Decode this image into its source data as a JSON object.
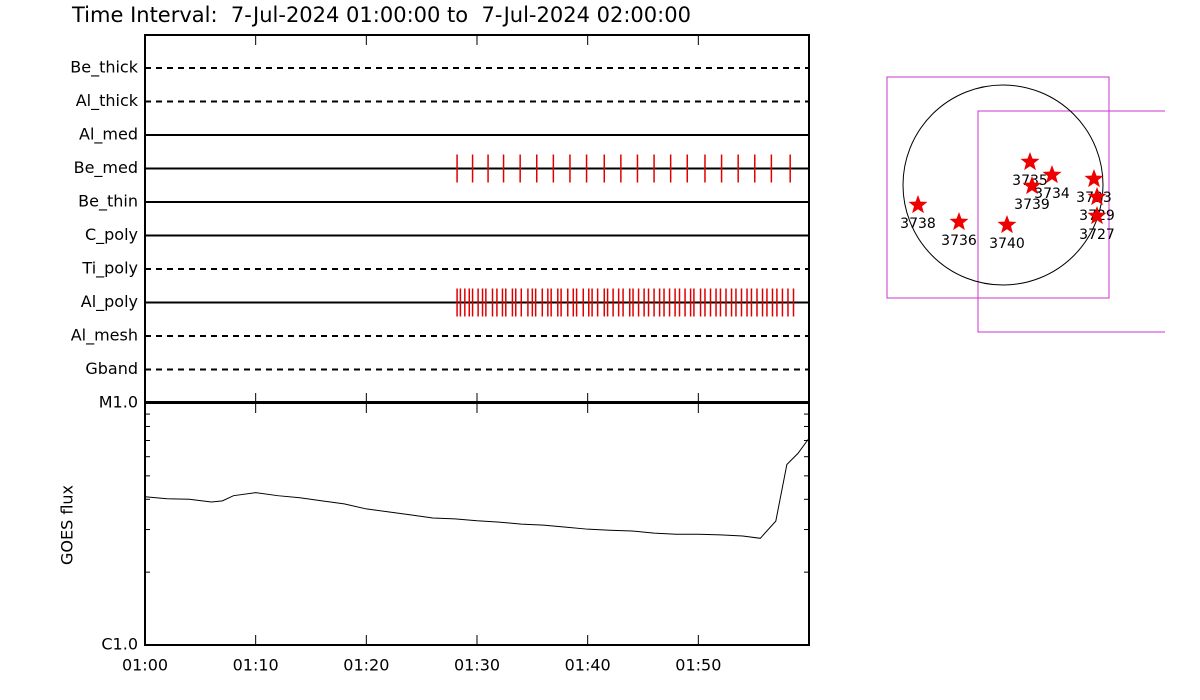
{
  "chart_data": [
    {
      "type": "timeline",
      "title": "Time Interval:  7-Jul-2024 01:00:00 to  7-Jul-2024 02:00:00",
      "color": "#e00000",
      "rows": [
        {
          "name": "Be_thick",
          "line": "dashed",
          "events": []
        },
        {
          "name": "Al_thick",
          "line": "dashed",
          "events": []
        },
        {
          "name": "Al_med",
          "line": "solid",
          "events": []
        },
        {
          "name": "Be_med",
          "line": "solid",
          "events": [
            28.2,
            29.6,
            31.0,
            32.4,
            33.9,
            35.4,
            36.9,
            38.4,
            39.9,
            41.5,
            43.0,
            44.5,
            46.0,
            47.5,
            49.0,
            50.6,
            52.1,
            53.6,
            55.1,
            56.6,
            58.3
          ]
        },
        {
          "name": "Be_thin",
          "line": "solid",
          "events": []
        },
        {
          "name": "C_poly",
          "line": "solid",
          "events": []
        },
        {
          "name": "Ti_poly",
          "line": "dashed",
          "events": []
        },
        {
          "name": "Al_poly",
          "line": "solid",
          "events": [
            28.2,
            28.5,
            28.9,
            29.3,
            29.6,
            30.1,
            30.5,
            30.8,
            31.4,
            31.8,
            32.3,
            32.6,
            33.2,
            33.5,
            34.0,
            34.6,
            35.0,
            35.3,
            35.9,
            36.4,
            36.7,
            37.3,
            37.6,
            38.2,
            38.7,
            39.0,
            39.6,
            40.1,
            40.4,
            40.9,
            41.5,
            41.8,
            42.3,
            42.8,
            43.2,
            43.8,
            44.1,
            44.6,
            45.1,
            45.5,
            46.0,
            46.5,
            46.9,
            47.4,
            47.9,
            48.3,
            48.8,
            49.3,
            49.6,
            50.2,
            50.6,
            51.1,
            51.6,
            52.0,
            52.5,
            53.0,
            53.4,
            53.9,
            54.4,
            54.8,
            55.3,
            55.8,
            56.2,
            56.7,
            57.1,
            57.6,
            58.1,
            58.6
          ]
        },
        {
          "name": "Al_mesh",
          "line": "dashed",
          "events": []
        },
        {
          "name": "Gband",
          "line": "dashed",
          "events": []
        }
      ]
    },
    {
      "type": "line",
      "y_label": "GOES flux",
      "log_y": true,
      "color": "#000000",
      "x": [
        0,
        2,
        4,
        6,
        7,
        8,
        10,
        12,
        14,
        16,
        18,
        20,
        22,
        24,
        26,
        28,
        30,
        32,
        34,
        36,
        38,
        40,
        42,
        44,
        46,
        48,
        50,
        52,
        54,
        55.6,
        57,
        58,
        59,
        60
      ],
      "values": [
        4.1e-06,
        4.02e-06,
        4e-06,
        3.9e-06,
        3.94e-06,
        4.14e-06,
        4.26e-06,
        4.14e-06,
        4.06e-06,
        3.94e-06,
        3.83e-06,
        3.65e-06,
        3.55e-06,
        3.45e-06,
        3.35e-06,
        3.32e-06,
        3.26e-06,
        3.22e-06,
        3.16e-06,
        3.13e-06,
        3.07e-06,
        3.01e-06,
        2.98e-06,
        2.96e-06,
        2.9e-06,
        2.87e-06,
        2.87e-06,
        2.85e-06,
        2.82e-06,
        2.76e-06,
        3.25e-06,
        5.57e-06,
        6.19e-06,
        7.15e-06
      ],
      "xlim": [
        0,
        60
      ],
      "xticks": [
        {
          "value": 0,
          "label": "01:00"
        },
        {
          "value": 10,
          "label": "01:10"
        },
        {
          "value": 20,
          "label": "01:20"
        },
        {
          "value": 30,
          "label": "01:30"
        },
        {
          "value": 40,
          "label": "01:40"
        },
        {
          "value": 50,
          "label": "01:50"
        }
      ],
      "ylim": [
        1e-06,
        1e-05
      ],
      "yticks": [
        {
          "value": 1e-06,
          "label": "C1.0"
        },
        {
          "value": 1e-05,
          "label": "M1.0"
        }
      ],
      "yminor_ticks": [
        2e-06,
        3e-06,
        4e-06,
        5e-06,
        6e-06,
        7e-06,
        8e-06,
        9e-06
      ]
    }
  ],
  "map": {
    "regions": [
      "3738",
      "3736",
      "3740",
      "3735",
      "3739",
      "3734",
      "3733",
      "3729",
      "3727"
    ]
  }
}
